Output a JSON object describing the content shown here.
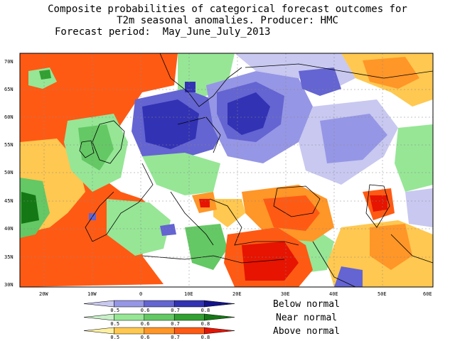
{
  "title": {
    "line1": "Composite probabilities of categorical forecast outcomes for",
    "line2": "T2m seasonal anomalies. Producer: HMC",
    "line3": "Forecast period:  May_June_July_2013"
  },
  "map": {
    "lat_labels": [
      "70N",
      "65N",
      "60N",
      "55N",
      "50N",
      "45N",
      "40N",
      "35N",
      "30N"
    ],
    "lon_labels": [
      "20W",
      "10W",
      "0",
      "10E",
      "20E",
      "30E",
      "40E",
      "50E",
      "60E"
    ],
    "lon_range": [
      -25,
      60
    ],
    "lat_range": [
      30,
      72
    ]
  },
  "legend": {
    "below_label": "Below normal",
    "near_label": "Near normal",
    "above_label": "Above normal",
    "ticks": [
      "0.5",
      "0.6",
      "0.7",
      "0.8"
    ],
    "below_colors": [
      "#c8c8f0",
      "#9696e6",
      "#6464d2",
      "#3232b4",
      "#14148c"
    ],
    "near_colors": [
      "#c8f0c8",
      "#96e696",
      "#64c864",
      "#32a032",
      "#147814"
    ],
    "above_colors": [
      "#fff0a0",
      "#ffc850",
      "#ff9628",
      "#ff5a14",
      "#e61400"
    ]
  }
}
